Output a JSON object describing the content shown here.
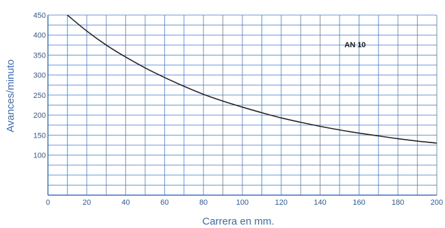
{
  "chart_data": {
    "type": "line",
    "title": "",
    "xlabel": "Carrera en mm.",
    "ylabel": "Avances/minuto",
    "xlim": [
      0,
      200
    ],
    "ylim": [
      0,
      450
    ],
    "xticks": [
      "0",
      "20",
      "40",
      "60",
      "80",
      "100",
      "120",
      "140",
      "160",
      "180",
      "200"
    ],
    "yticks": [
      "100",
      "150",
      "200",
      "250",
      "300",
      "350",
      "400",
      "450"
    ],
    "grid": true,
    "grid_color": "#3a6fc4",
    "line_color": "#222222",
    "series": [
      {
        "name": "AN 10",
        "x": [
          10,
          20,
          30,
          40,
          50,
          60,
          70,
          80,
          90,
          100,
          110,
          120,
          130,
          140,
          150,
          160,
          170,
          180,
          190,
          200
        ],
        "y": [
          450,
          410,
          375,
          345,
          318,
          294,
          272,
          252,
          235,
          220,
          206,
          193,
          182,
          172,
          163,
          155,
          148,
          141,
          135,
          130
        ]
      }
    ],
    "annotations": [
      {
        "text": "AN 10",
        "x": 158,
        "y": 370
      }
    ]
  }
}
